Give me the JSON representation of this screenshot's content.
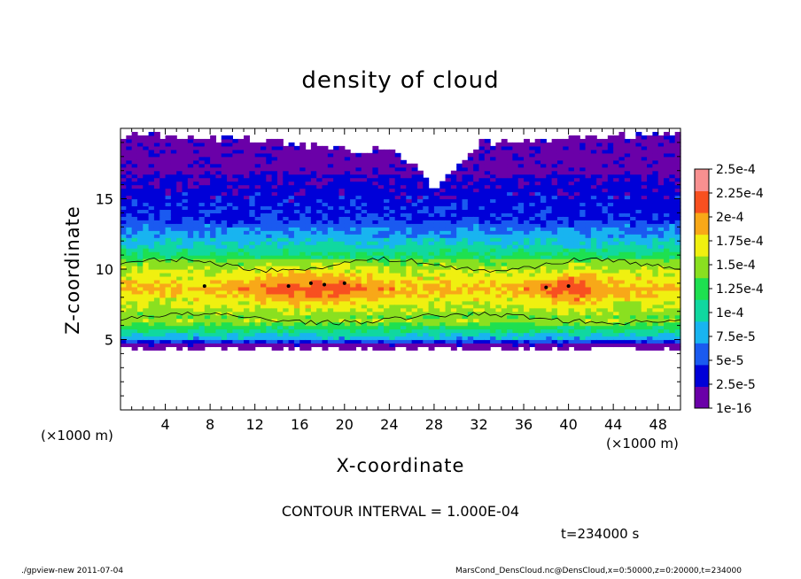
{
  "chart_data": {
    "type": "heatmap",
    "title": "density of cloud",
    "xlabel": "X-coordinate",
    "ylabel": "Z-coordinate",
    "x_unit": "(×1000 m)",
    "xlim": [
      0,
      50
    ],
    "ylim": [
      0,
      20
    ],
    "xticks": [
      4,
      8,
      12,
      16,
      20,
      24,
      28,
      32,
      36,
      40,
      44,
      48
    ],
    "yticks": [
      5,
      10,
      15
    ],
    "colorbar": {
      "labels": [
        "1e-16",
        "2.5e-5",
        "5e-5",
        "7.5e-5",
        "1e-4",
        "1.25e-4",
        "1.5e-4",
        "1.75e-4",
        "2e-4",
        "2.25e-4",
        "2.5e-4"
      ],
      "colors": [
        "#6a00a8",
        "#0000d8",
        "#1a5af0",
        "#18b4f0",
        "#10d8a0",
        "#1ee050",
        "#8ae020",
        "#f0f010",
        "#f8a818",
        "#f85020",
        "#f89090"
      ]
    },
    "cloud_layer": {
      "bottom_km": 4.5,
      "peak_density_z_km": 8.5,
      "top_km_profile": [
        [
          0,
          19.5
        ],
        [
          10,
          19.2
        ],
        [
          20,
          18.5
        ],
        [
          24,
          18.3
        ],
        [
          26,
          17.5
        ],
        [
          28,
          15.5
        ],
        [
          30,
          17.3
        ],
        [
          32,
          18.8
        ],
        [
          40,
          19.2
        ],
        [
          50,
          19.5
        ]
      ]
    },
    "contour_interval": "CONTOUR INTERVAL = 1.000E-04"
  },
  "annotations": {
    "time": "t=234000 s",
    "footer_left": "./gpview-new  2011-07-04",
    "footer_right": "MarsCond_DensCloud.nc@DensCloud,x=0:50000,z=0:20000,t=234000"
  }
}
